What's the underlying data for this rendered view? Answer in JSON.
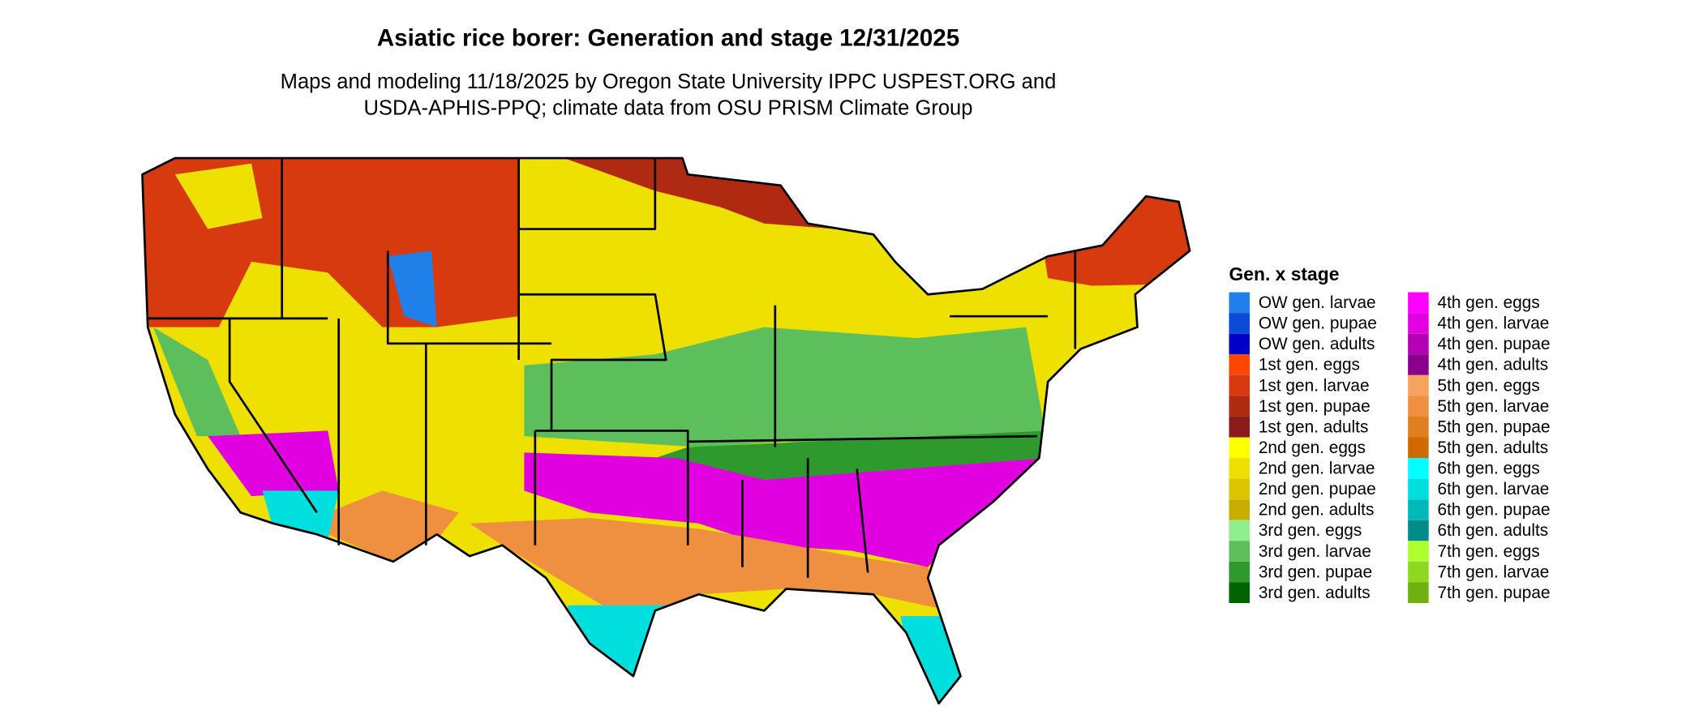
{
  "title": "Asiatic rice borer: Generation and stage 12/31/2025",
  "subtitle_lines": [
    "Maps and modeling 11/18/2025 by Oregon State University IPPC USPEST.ORG and",
    "USDA-APHIS-PPQ; climate data from OSU PRISM Climate Group"
  ],
  "legend": {
    "title": "Gen. x stage",
    "items": [
      {
        "label": "OW gen. larvae",
        "color": "#1e80e8"
      },
      {
        "label": "OW gen. pupae",
        "color": "#0a4cd8"
      },
      {
        "label": "OW gen. adults",
        "color": "#0000c8"
      },
      {
        "label": "1st gen. eggs",
        "color": "#ff4500"
      },
      {
        "label": "1st gen. larvae",
        "color": "#d83a10"
      },
      {
        "label": "1st gen. pupae",
        "color": "#b02a12"
      },
      {
        "label": "1st gen. adults",
        "color": "#8b1a1a"
      },
      {
        "label": "2nd gen. eggs",
        "color": "#ffff00"
      },
      {
        "label": "2nd gen. larvae",
        "color": "#eee000"
      },
      {
        "label": "2nd gen. pupae",
        "color": "#dcc600"
      },
      {
        "label": "2nd gen. adults",
        "color": "#c8ae00"
      },
      {
        "label": "3rd gen. eggs",
        "color": "#90ee90"
      },
      {
        "label": "3rd gen. larvae",
        "color": "#5cbf5c"
      },
      {
        "label": "3rd gen. pupae",
        "color": "#2e9a2e"
      },
      {
        "label": "3rd gen. adults",
        "color": "#006400"
      },
      {
        "label": "4th gen. eggs",
        "color": "#ff00ff"
      },
      {
        "label": "4th gen. larvae",
        "color": "#e000e0"
      },
      {
        "label": "4th gen. pupae",
        "color": "#b400b4"
      },
      {
        "label": "4th gen. adults",
        "color": "#8b008b"
      },
      {
        "label": "5th gen. eggs",
        "color": "#f4a460"
      },
      {
        "label": "5th gen. larvae",
        "color": "#ee9040"
      },
      {
        "label": "5th gen. pupae",
        "color": "#e07f20"
      },
      {
        "label": "5th gen. adults",
        "color": "#d06a00"
      },
      {
        "label": "6th gen. eggs",
        "color": "#00ffff"
      },
      {
        "label": "6th gen. larvae",
        "color": "#00dede"
      },
      {
        "label": "6th gen. pupae",
        "color": "#00b8b8"
      },
      {
        "label": "6th gen. adults",
        "color": "#008b8b"
      },
      {
        "label": "7th gen. eggs",
        "color": "#adff2f"
      },
      {
        "label": "7th gen. larvae",
        "color": "#90d820"
      },
      {
        "label": "7th gen. pupae",
        "color": "#70b010"
      }
    ]
  }
}
